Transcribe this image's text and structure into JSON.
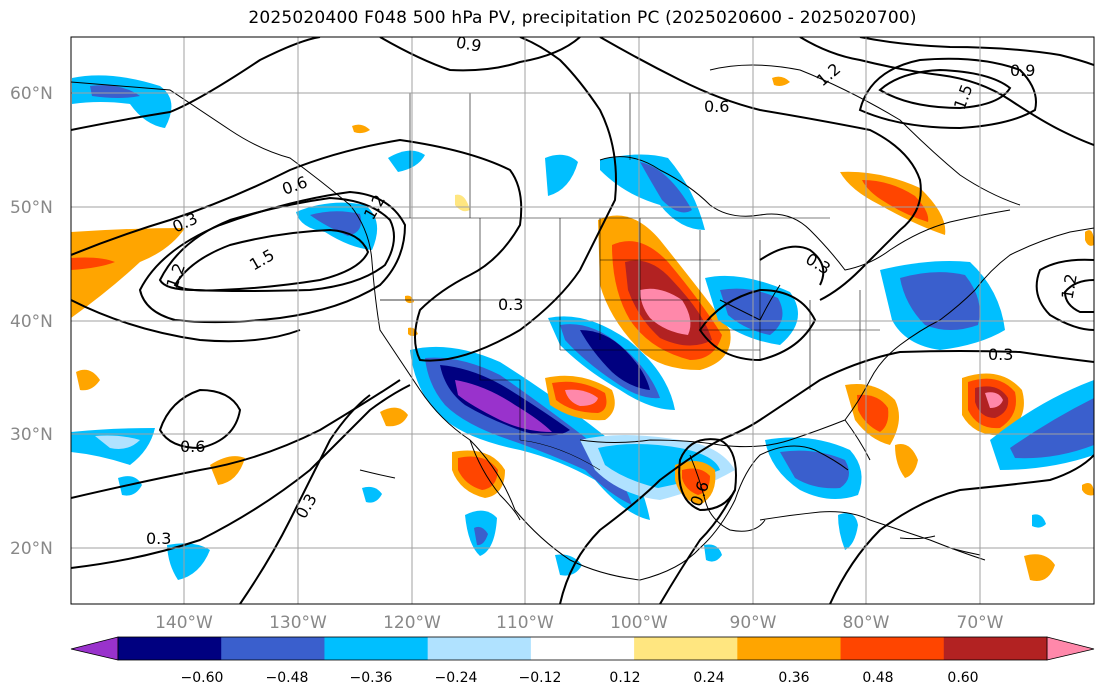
{
  "title": "2025020400 F048 500 hPa PV, precipitation PC (2025020600 - 2025020700)",
  "map": {
    "lat_labels": [
      "60°N",
      "50°N",
      "40°N",
      "30°N",
      "20°N"
    ],
    "lon_labels": [
      "140°W",
      "130°W",
      "120°W",
      "110°W",
      "100°W",
      "90°W",
      "80°W",
      "70°W"
    ],
    "contour_labels": [
      "0.9",
      "0.6",
      "1.2",
      "1.5",
      "0.9",
      "0.3",
      "0.6",
      "1.2",
      "1.5",
      "1.2",
      "0.3",
      "0.3",
      "1.2",
      "0.3",
      "0.6",
      "0.3",
      "0.3",
      "0.6"
    ],
    "contour_color": "#000000",
    "coastline_color": "#000000",
    "gridline_color": "#a0a0a0"
  },
  "colorbar": {
    "tick_labels": [
      "−0.60",
      "−0.48",
      "−0.36",
      "−0.24",
      "−0.12",
      "0.12",
      "0.24",
      "0.36",
      "0.48",
      "0.60"
    ],
    "colors": [
      "#9932cc",
      "#000080",
      "#3a5fcd",
      "#00bfff",
      "#b0e2ff",
      "#ffffff",
      "#ffe680",
      "#ffa500",
      "#ff4500",
      "#b22222",
      "#ff88aa"
    ]
  }
}
